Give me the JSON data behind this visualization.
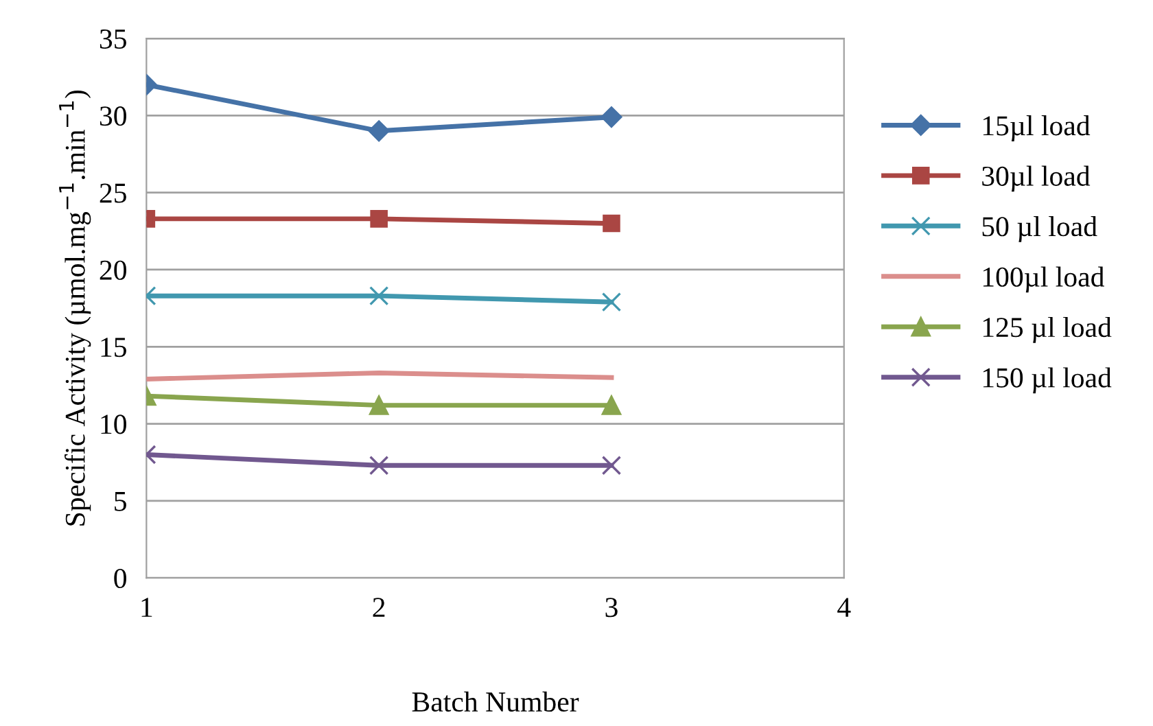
{
  "chart_data": {
    "type": "line",
    "xlabel": "Batch Number",
    "ylabel": "Specific Activity (µmol.mg$^{−1}$.min$^{−1}$)",
    "x": [
      1,
      2,
      3
    ],
    "series": [
      {
        "name": "15µl load",
        "color": "#4572a7",
        "marker": "diamond",
        "values": [
          32.0,
          29.0,
          29.9
        ]
      },
      {
        "name": "30µl load",
        "color": "#aa4643",
        "marker": "square",
        "values": [
          23.3,
          23.3,
          23.0
        ]
      },
      {
        "name": "50 µl load",
        "color": "#4198af",
        "marker": "cross",
        "values": [
          18.3,
          18.3,
          17.9
        ]
      },
      {
        "name": "100µl load",
        "color": "#db8e8c",
        "marker": "none",
        "values": [
          12.9,
          13.3,
          13.0
        ]
      },
      {
        "name": "125 µl load",
        "color": "#89a54e",
        "marker": "triangle",
        "values": [
          11.8,
          11.2,
          11.2
        ]
      },
      {
        "name": "150 µl load",
        "color": "#71588f",
        "marker": "cross",
        "values": [
          8.0,
          7.3,
          7.3
        ]
      }
    ],
    "xlim": [
      1,
      4
    ],
    "xticks": [
      1,
      2,
      3,
      4
    ],
    "ylim": [
      0,
      35
    ],
    "yticks": [
      0,
      5,
      10,
      15,
      20,
      25,
      30,
      35
    ],
    "grid": "y",
    "legend": "right",
    "line_style": "solid"
  }
}
